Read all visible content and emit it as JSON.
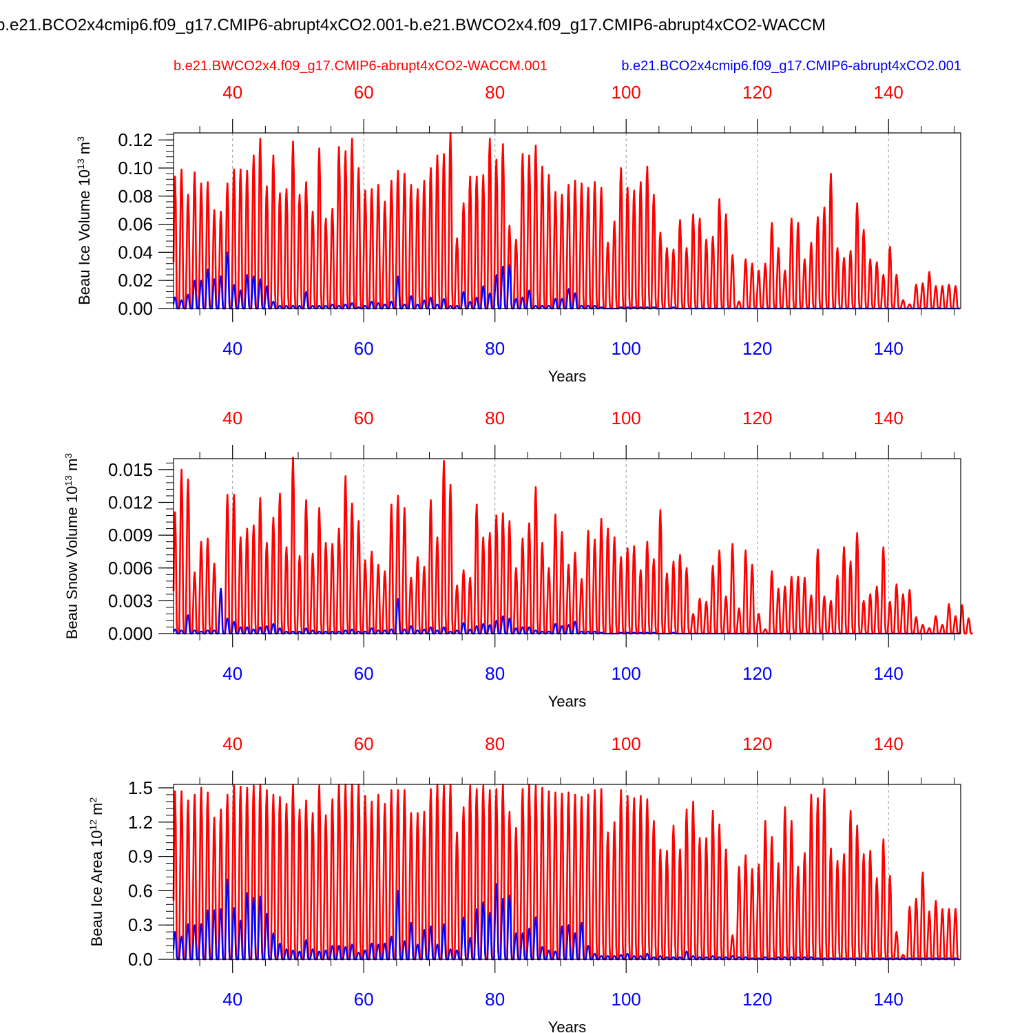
{
  "figure": {
    "title": "b.e21.BCO2x4cmip6.f09_g17.CMIP6-abrupt4xCO2.001-b.e21.BWCO2x4.f09_g17.CMIP6-abrupt4xCO2-WACCM",
    "legend_red": "b.e21.BWCO2x4.f09_g17.CMIP6-abrupt4xCO2-WACCM.001",
    "legend_blue": "b.e21.BCO2x4cmip6.f09_g17.CMIP6-abrupt4xCO2.001",
    "red_color": "#ff0000",
    "blue_color": "#0000ff"
  },
  "chart_data": [
    {
      "type": "line",
      "title": "",
      "ylabel": "Beau Ice Volume",
      "yunit": "10^13 m^3",
      "xlabel": "Years",
      "xlim": [
        31,
        151
      ],
      "ylim": [
        0,
        0.125
      ],
      "xticks": [
        40,
        60,
        80,
        100,
        120,
        140
      ],
      "xticks_top": [
        40,
        60,
        80,
        100,
        120,
        140
      ],
      "yticks": [
        "0.00",
        "0.02",
        "0.04",
        "0.06",
        "0.08",
        "0.10",
        "0.12"
      ],
      "ytick_values": [
        0,
        0.02,
        0.04,
        0.06,
        0.08,
        0.1,
        0.12
      ],
      "grid": "vertical dashed at major x ticks",
      "series": [
        {
          "name": "b.e21.BWCO2x4.f09_g17.CMIP6-abrupt4xCO2-WACCM.001",
          "color": "#ff0000",
          "start_year": 31,
          "annual_max": [
            0.094,
            0.099,
            0.081,
            0.097,
            0.089,
            0.09,
            0.07,
            0.069,
            0.089,
            0.099,
            0.099,
            0.098,
            0.109,
            0.121,
            0.087,
            0.109,
            0.082,
            0.085,
            0.119,
            0.081,
            0.09,
            0.069,
            0.114,
            0.064,
            0.071,
            0.115,
            0.112,
            0.121,
            0.1,
            0.084,
            0.085,
            0.088,
            0.076,
            0.091,
            0.098,
            0.096,
            0.088,
            0.085,
            0.091,
            0.1,
            0.109,
            0.11,
            0.125,
            0.05,
            0.075,
            0.094,
            0.094,
            0.095,
            0.121,
            0.106,
            0.117,
            0.059,
            0.049,
            0.11,
            0.109,
            0.116,
            0.101,
            0.095,
            0.083,
            0.081,
            0.088,
            0.091,
            0.089,
            0.086,
            0.09,
            0.086,
            0.047,
            0.062,
            0.1,
            0.086,
            0.084,
            0.09,
            0.101,
            0.081,
            0.054,
            0.043,
            0.042,
            0.063,
            0.043,
            0.067,
            0.064,
            0.049,
            0.051,
            0.078,
            0.067,
            0.038,
            0.005,
            0.035,
            0.032,
            0.027,
            0.032,
            0.061,
            0.043,
            0.027,
            0.064,
            0.061,
            0.035,
            0.047,
            0.065,
            0.072,
            0.096,
            0.043,
            0.036,
            0.041,
            0.075,
            0.056,
            0.035,
            0.033,
            0.024,
            0.044,
            0.024,
            0.006,
            0.003,
            0.017,
            0.018,
            0.026,
            0.016,
            0.016,
            0.017,
            0.016
          ]
        },
        {
          "name": "b.e21.BCO2x4cmip6.f09_g17.CMIP6-abrupt4xCO2.001",
          "color": "#0000ff",
          "start_year": 31,
          "annual_max": [
            0.008,
            0.006,
            0.01,
            0.02,
            0.02,
            0.028,
            0.021,
            0.023,
            0.04,
            0.017,
            0.013,
            0.024,
            0.023,
            0.021,
            0.016,
            0.005,
            0.002,
            0.002,
            0.002,
            0.002,
            0.012,
            0.002,
            0.002,
            0.002,
            0.003,
            0.002,
            0.003,
            0.004,
            0.001,
            0.002,
            0.005,
            0.004,
            0.003,
            0.005,
            0.023,
            0.003,
            0.009,
            0.003,
            0.006,
            0.008,
            0.003,
            0.007,
            0.002,
            0.002,
            0.012,
            0.005,
            0.008,
            0.016,
            0.011,
            0.024,
            0.03,
            0.031,
            0.007,
            0.008,
            0.013,
            0.002,
            0.002,
            0.002,
            0.007,
            0.007,
            0.014,
            0.011,
            0.002,
            0.002,
            0.002,
            0.001,
            0.0,
            0.0,
            0.001,
            0.001,
            0.001,
            0.001,
            0.001,
            0.001,
            0.0,
            0.0,
            0.001,
            0.0,
            0.0,
            0.0,
            0.0,
            0.0,
            0.0,
            0.0,
            0.0,
            0.0,
            0.0,
            0.0,
            0.0,
            0.0,
            0.0,
            0.0,
            0.0,
            0.0,
            0.0,
            0.0,
            0.0,
            0.0,
            0.0,
            0.0,
            0.0,
            0.0,
            0.0,
            0.0,
            0.0,
            0.0,
            0.0,
            0.0,
            0.0,
            0.0,
            0.0,
            0.0,
            0.0,
            0.0,
            0.0,
            0.0,
            0.0,
            0.0,
            0.0,
            0.0
          ]
        }
      ]
    },
    {
      "type": "line",
      "title": "",
      "ylabel": "Beau Snow Volume",
      "yunit": "10^13 m^3",
      "xlabel": "Years",
      "xlim": [
        31,
        151
      ],
      "ylim": [
        0,
        0.016
      ],
      "xticks": [
        40,
        60,
        80,
        100,
        120,
        140
      ],
      "xticks_top": [
        40,
        60,
        80,
        100,
        120,
        140
      ],
      "yticks": [
        "0.000",
        "0.003",
        "0.006",
        "0.009",
        "0.012",
        "0.015"
      ],
      "ytick_values": [
        0,
        0.003,
        0.006,
        0.009,
        0.012,
        0.015
      ],
      "grid": "vertical dashed at major x ticks",
      "series": [
        {
          "name": "b.e21.BWCO2x4.f09_g17.CMIP6-abrupt4xCO2-WACCM.001",
          "color": "#ff0000",
          "start_year": 31,
          "annual_max": [
            0.0111,
            0.015,
            0.0141,
            0.0056,
            0.0084,
            0.0087,
            0.0064,
            0.0041,
            0.0127,
            0.0127,
            0.0088,
            0.0096,
            0.0099,
            0.0124,
            0.0083,
            0.0106,
            0.0128,
            0.0079,
            0.0161,
            0.0071,
            0.0122,
            0.0073,
            0.0115,
            0.0083,
            0.0082,
            0.0096,
            0.0144,
            0.0119,
            0.0103,
            0.0067,
            0.0075,
            0.0063,
            0.0057,
            0.0118,
            0.0126,
            0.0115,
            0.0051,
            0.007,
            0.0061,
            0.0122,
            0.0088,
            0.0158,
            0.0136,
            0.0044,
            0.0058,
            0.0051,
            0.0118,
            0.0088,
            0.0092,
            0.0108,
            0.011,
            0.0103,
            0.006,
            0.0087,
            0.0101,
            0.0134,
            0.0083,
            0.006,
            0.0109,
            0.0093,
            0.0063,
            0.0074,
            0.005,
            0.0094,
            0.0086,
            0.0105,
            0.0096,
            0.0088,
            0.007,
            0.0078,
            0.008,
            0.0058,
            0.0084,
            0.0068,
            0.0113,
            0.0055,
            0.0066,
            0.0072,
            0.006,
            0.0018,
            0.0032,
            0.0029,
            0.0062,
            0.0076,
            0.0034,
            0.0082,
            0.0023,
            0.0076,
            0.0063,
            0.0018,
            0.0004,
            0.0057,
            0.0041,
            0.0043,
            0.0052,
            0.0052,
            0.0051,
            0.0035,
            0.0077,
            0.0034,
            0.003,
            0.0053,
            0.0079,
            0.0066,
            0.0092,
            0.003,
            0.0036,
            0.0043,
            0.0079,
            0.0029,
            0.0045,
            0.0036,
            0.004,
            0.0015,
            0.0008,
            0.0005,
            0.0016,
            0.0008,
            0.0027,
            0.0016,
            0.0026,
            0.0014
          ]
        },
        {
          "name": "b.e21.BCO2x4cmip6.f09_g17.CMIP6-abrupt4xCO2.001",
          "color": "#0000ff",
          "start_year": 31,
          "annual_max": [
            0.0004,
            0.0003,
            0.0017,
            0.0003,
            0.0002,
            0.0003,
            0.0003,
            0.0041,
            0.0014,
            0.0011,
            0.0006,
            0.0006,
            0.0004,
            0.0006,
            0.0007,
            0.0009,
            0.0005,
            0.0002,
            0.0002,
            0.0002,
            0.0005,
            0.0003,
            0.0002,
            0.0002,
            0.0002,
            0.0002,
            0.0003,
            0.0004,
            0.0002,
            0.0002,
            0.0005,
            0.0003,
            0.0003,
            0.0004,
            0.0032,
            0.0004,
            0.0007,
            0.0003,
            0.0004,
            0.0006,
            0.0003,
            0.0006,
            0.0002,
            0.0003,
            0.001,
            0.0004,
            0.0007,
            0.0009,
            0.0008,
            0.0012,
            0.0016,
            0.0014,
            0.0005,
            0.0006,
            0.0006,
            0.0003,
            0.0002,
            0.0002,
            0.0009,
            0.0007,
            0.0008,
            0.0011,
            0.0002,
            0.0002,
            0.0002,
            0.0001,
            0.0,
            0.0,
            0.0001,
            0.0001,
            0.0001,
            0.0001,
            0.0001,
            0.0001,
            0.0,
            0.0,
            0.0001,
            0.0,
            0.0,
            0.0,
            0.0,
            0.0,
            0.0,
            0.0,
            0.0,
            0.0,
            0.0,
            0.0,
            0.0,
            0.0,
            0.0,
            0.0,
            0.0,
            0.0,
            0.0,
            0.0,
            0.0,
            0.0,
            0.0,
            0.0,
            0.0,
            0.0,
            0.0,
            0.0,
            0.0,
            0.0,
            0.0,
            0.0,
            0.0,
            0.0,
            0.0,
            0.0,
            0.0,
            0.0,
            0.0,
            0.0,
            0.0,
            0.0,
            0.0,
            0.0
          ]
        }
      ]
    },
    {
      "type": "line",
      "title": "",
      "ylabel": "Beau Ice Area",
      "yunit": "10^12 m^2",
      "xlabel": "Years",
      "xlim": [
        31,
        151
      ],
      "ylim": [
        0,
        1.53
      ],
      "xticks": [
        40,
        60,
        80,
        100,
        120,
        140
      ],
      "xticks_top": [
        40,
        60,
        80,
        100,
        120,
        140
      ],
      "yticks": [
        "0.0",
        "0.3",
        "0.6",
        "0.9",
        "1.2",
        "1.5"
      ],
      "ytick_values": [
        0,
        0.3,
        0.6,
        0.9,
        1.2,
        1.5
      ],
      "grid": "vertical dashed at major x ticks",
      "series": [
        {
          "name": "b.e21.BWCO2x4.f09_g17.CMIP6-abrupt4xCO2-WACCM.001",
          "color": "#ff0000",
          "start_year": 31,
          "annual_max": [
            1.47,
            1.47,
            1.39,
            1.44,
            1.5,
            1.46,
            1.24,
            1.31,
            1.44,
            1.52,
            1.51,
            1.5,
            1.52,
            1.53,
            1.48,
            1.44,
            1.42,
            1.36,
            1.53,
            1.31,
            1.39,
            1.28,
            1.52,
            1.26,
            1.4,
            1.53,
            1.53,
            1.53,
            1.53,
            1.43,
            1.38,
            1.44,
            1.36,
            1.48,
            1.48,
            1.48,
            1.28,
            1.28,
            1.29,
            1.49,
            1.53,
            1.52,
            1.53,
            1.11,
            1.33,
            1.52,
            1.49,
            1.52,
            1.48,
            1.49,
            1.53,
            1.29,
            1.15,
            1.49,
            1.53,
            1.52,
            1.5,
            1.47,
            1.46,
            1.45,
            1.46,
            1.44,
            1.42,
            1.44,
            1.48,
            1.49,
            1.11,
            1.2,
            1.48,
            1.43,
            1.41,
            1.43,
            1.4,
            1.21,
            0.96,
            0.95,
            1.17,
            0.96,
            1.31,
            1.38,
            1.06,
            1.06,
            1.3,
            1.18,
            0.96,
            0.21,
            0.81,
            0.91,
            0.79,
            0.83,
            1.21,
            1.07,
            0.84,
            1.33,
            1.21,
            0.81,
            0.93,
            1.44,
            1.41,
            1.49,
            0.97,
            0.86,
            0.92,
            1.3,
            1.17,
            0.92,
            0.95,
            0.71,
            1.05,
            0.73,
            0.24,
            0.04,
            0.46,
            0.53,
            0.76,
            0.42,
            0.51,
            0.44,
            0.44,
            0.44
          ]
        },
        {
          "name": "b.e21.BCO2x4cmip6.f09_g17.CMIP6-abrupt4xCO2.001",
          "color": "#0000ff",
          "start_year": 31,
          "annual_max": [
            0.24,
            0.2,
            0.31,
            0.3,
            0.31,
            0.43,
            0.43,
            0.44,
            0.7,
            0.45,
            0.34,
            0.58,
            0.54,
            0.55,
            0.4,
            0.23,
            0.14,
            0.09,
            0.08,
            0.07,
            0.17,
            0.09,
            0.07,
            0.08,
            0.12,
            0.12,
            0.11,
            0.13,
            0.06,
            0.08,
            0.14,
            0.13,
            0.14,
            0.2,
            0.6,
            0.16,
            0.32,
            0.13,
            0.26,
            0.29,
            0.13,
            0.31,
            0.09,
            0.08,
            0.37,
            0.19,
            0.44,
            0.5,
            0.41,
            0.66,
            0.53,
            0.56,
            0.23,
            0.23,
            0.27,
            0.37,
            0.11,
            0.08,
            0.07,
            0.29,
            0.3,
            0.23,
            0.32,
            0.12,
            0.05,
            0.03,
            0.03,
            0.03,
            0.04,
            0.05,
            0.03,
            0.03,
            0.05,
            0.02,
            0.03,
            0.02,
            0.02,
            0.02,
            0.07,
            0.03,
            0.02,
            0.02,
            0.03,
            0.02,
            0.02,
            0.03,
            0.02,
            0.02,
            0.01,
            0.01,
            0.02,
            0.01,
            0.02,
            0.02,
            0.02,
            0.02,
            0.02,
            0.02,
            0.01,
            0.01,
            0.01,
            0.01,
            0.01,
            0.01,
            0.01,
            0.01,
            0.01,
            0.01,
            0.01,
            0.01,
            0.01,
            0.01,
            0.01,
            0.01,
            0.01,
            0.01,
            0.01,
            0.01,
            0.01,
            0.01
          ]
        }
      ]
    }
  ]
}
